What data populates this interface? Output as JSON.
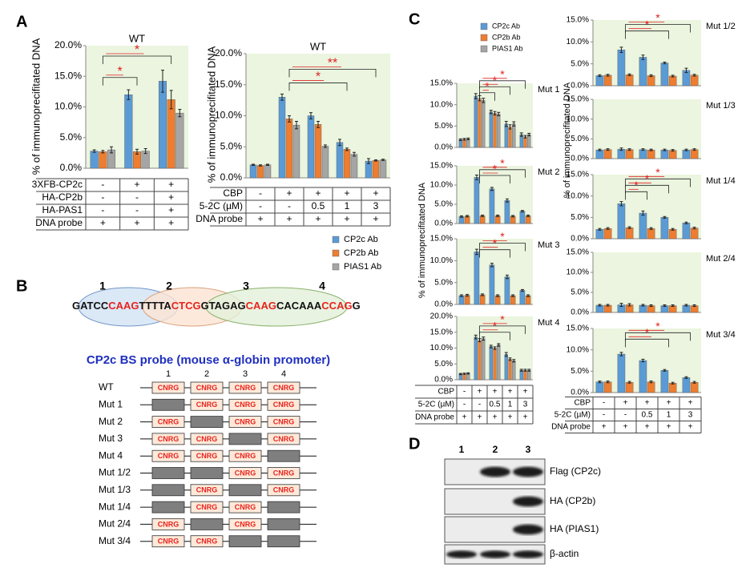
{
  "panels": [
    "A",
    "B",
    "C",
    "D"
  ],
  "chart_data": [
    {
      "type": "bar",
      "title": "WT",
      "ylabel": "% of immunoprecifitated DNA",
      "ylim": [
        0,
        20
      ],
      "yticks": [
        {
          "value": 0,
          "label": "0.0%"
        },
        {
          "value": 5,
          "label": "5.0%"
        },
        {
          "value": 10,
          "label": "10.0%"
        },
        {
          "value": 15,
          "label": "15.0%"
        },
        {
          "value": 20,
          "label": "20.0%"
        }
      ],
      "background": "#ebf5df",
      "series": [
        {
          "color": "#5b9bd5",
          "values": [
            2.8,
            12.0,
            14.2
          ],
          "errors": [
            0.2,
            0.8,
            1.8
          ]
        },
        {
          "color": "#ed7d31",
          "values": [
            2.7,
            2.7,
            11.2
          ],
          "errors": [
            0.2,
            0.4,
            1.5
          ]
        },
        {
          "color": "#a5a5a5",
          "values": [
            3.0,
            2.8,
            9.0
          ],
          "errors": [
            0.5,
            0.4,
            0.6
          ]
        }
      ],
      "conditions": [
        {
          "label": "3XFB-CP2c",
          "values": [
            "-",
            "+",
            "+"
          ]
        },
        {
          "label": "HA-CP2b",
          "values": [
            "-",
            "-",
            "+"
          ]
        },
        {
          "label": "HA-PAS1",
          "values": [
            "-",
            "-",
            "+"
          ]
        },
        {
          "label": "DNA probe",
          "values": [
            "+",
            "+",
            "+"
          ]
        }
      ],
      "annotations": [
        "*",
        "*"
      ]
    },
    {
      "type": "bar",
      "title": "WT",
      "ylabel": "% of immunoprecifitated DNA",
      "ylim": [
        0,
        20
      ],
      "yticks": [
        {
          "value": 0,
          "label": "0.0%"
        },
        {
          "value": 5,
          "label": "5.0%"
        },
        {
          "value": 10,
          "label": "10.0%"
        },
        {
          "value": 15,
          "label": "15.0%"
        },
        {
          "value": 20,
          "label": "20.0%"
        }
      ],
      "background": "#ebf5df",
      "series": [
        {
          "name": "CP2c Ab",
          "color": "#5b9bd5",
          "values": [
            2.1,
            13.0,
            10.0,
            5.7,
            2.7
          ],
          "errors": [
            0.1,
            0.5,
            0.5,
            0.5,
            0.4
          ]
        },
        {
          "name": "CP2b Ab",
          "color": "#ed7d31",
          "values": [
            2.0,
            9.5,
            8.6,
            4.6,
            2.8
          ],
          "errors": [
            0.1,
            0.5,
            0.5,
            0.2,
            0.1
          ]
        },
        {
          "name": "PIAS1 Ab",
          "color": "#a5a5a5",
          "values": [
            2.1,
            8.5,
            5.1,
            3.8,
            2.9
          ],
          "errors": [
            0.1,
            0.6,
            0.2,
            0.3,
            0.1
          ]
        }
      ],
      "conditions": [
        {
          "label": "CBP",
          "values": [
            "-",
            "+",
            "+",
            "+",
            "+"
          ]
        },
        {
          "label": "5-2C (µM)",
          "values": [
            "-",
            "-",
            "0.5",
            "1",
            "3"
          ]
        },
        {
          "label": "DNA probe",
          "values": [
            "+",
            "+",
            "+",
            "+",
            "+"
          ]
        }
      ],
      "annotations": [
        "**",
        "*"
      ]
    },
    {
      "type": "bar",
      "title": "Mut 1",
      "ylim": [
        0,
        15
      ],
      "yticks": [
        {
          "value": 0,
          "label": "0.0%"
        },
        {
          "value": 5,
          "label": "5.0%"
        },
        {
          "value": 10,
          "label": "10.0%"
        },
        {
          "value": 15,
          "label": "15.0%"
        }
      ],
      "background": "#ebf5df",
      "series": [
        {
          "name": "CP2c Ab",
          "color": "#5b9bd5",
          "values": [
            1.8,
            12.0,
            8.3,
            5.5,
            3.0
          ],
          "errors": [
            0.2,
            0.6,
            0.4,
            0.6,
            0.4
          ]
        },
        {
          "name": "CP2b Ab",
          "color": "#ed7d31",
          "values": [
            1.9,
            11.5,
            8.0,
            4.8,
            2.5
          ],
          "errors": [
            0.2,
            0.6,
            0.4,
            0.5,
            0.3
          ]
        },
        {
          "name": "PIAS1 Ab",
          "color": "#a5a5a5",
          "values": [
            2.0,
            11.0,
            7.8,
            5.5,
            3.0
          ],
          "errors": [
            0.2,
            0.5,
            0.4,
            0.5,
            0.3
          ]
        }
      ],
      "annotations": [
        "*",
        "*",
        "*"
      ]
    },
    {
      "type": "bar",
      "title": "Mut 2",
      "ylim": [
        0,
        15
      ],
      "yticks": [
        {
          "value": 0,
          "label": "0.0%"
        },
        {
          "value": 5,
          "label": "5.0%"
        },
        {
          "value": 10,
          "label": "10.0%"
        },
        {
          "value": 15,
          "label": "15.0%"
        }
      ],
      "background": "#ebf5df",
      "series": [
        {
          "color": "#5b9bd5",
          "values": [
            1.8,
            12.0,
            9.0,
            6.0,
            3.2
          ],
          "errors": [
            0.2,
            0.6,
            0.4,
            0.4,
            0.2
          ]
        },
        {
          "color": "#ed7d31",
          "values": [
            1.9,
            2.0,
            2.0,
            1.9,
            2.0
          ],
          "errors": [
            0.2,
            0.2,
            0.2,
            0.2,
            0.2
          ]
        }
      ],
      "annotations": [
        "*",
        "*"
      ]
    },
    {
      "type": "bar",
      "title": "Mut 3",
      "ylabel": "% of immunoprecifitated DNA",
      "ylim": [
        0,
        15
      ],
      "yticks": [
        {
          "value": 0,
          "label": "0.0%"
        },
        {
          "value": 5,
          "label": "5.0%"
        },
        {
          "value": 10,
          "label": "10.0%"
        },
        {
          "value": 15,
          "label": "15.0%"
        }
      ],
      "background": "#ebf5df",
      "series": [
        {
          "color": "#5b9bd5",
          "values": [
            2.0,
            12.0,
            9.0,
            6.3,
            3.2
          ],
          "errors": [
            0.2,
            0.6,
            0.4,
            0.4,
            0.2
          ]
        },
        {
          "color": "#ed7d31",
          "values": [
            2.1,
            2.2,
            2.0,
            2.0,
            2.0
          ],
          "errors": [
            0.2,
            0.2,
            0.2,
            0.2,
            0.2
          ]
        }
      ],
      "annotations": [
        "*",
        "*"
      ]
    },
    {
      "type": "bar",
      "title": "Mut 4",
      "ylim": [
        0,
        20
      ],
      "yticks": [
        {
          "value": 0,
          "label": "0.0%"
        },
        {
          "value": 5,
          "label": "5.0%"
        },
        {
          "value": 10,
          "label": "10.0%"
        },
        {
          "value": 15,
          "label": "15.0%"
        },
        {
          "value": 20,
          "label": "20.0%"
        }
      ],
      "background": "#ebf5df",
      "series": [
        {
          "color": "#5b9bd5",
          "values": [
            1.8,
            13.5,
            10.5,
            8.0,
            3.0
          ],
          "errors": [
            0.2,
            0.6,
            0.4,
            0.6,
            0.3
          ]
        },
        {
          "color": "#ed7d31",
          "values": [
            1.9,
            12.5,
            10.0,
            6.5,
            3.0
          ],
          "errors": [
            0.2,
            0.5,
            0.4,
            0.4,
            0.3
          ]
        },
        {
          "color": "#a5a5a5",
          "values": [
            2.0,
            13.0,
            11.0,
            6.0,
            3.0
          ],
          "errors": [
            0.2,
            0.5,
            0.4,
            0.4,
            0.3
          ]
        }
      ],
      "conditions": [
        {
          "label": "CBP",
          "values": [
            "-",
            "+",
            "+",
            "+",
            "+"
          ]
        },
        {
          "label": "5-2C (µM)",
          "values": [
            "-",
            "-",
            "0.5",
            "1",
            "3"
          ]
        },
        {
          "label": "DNA probe",
          "values": [
            "+",
            "+",
            "+",
            "+",
            "+"
          ]
        }
      ],
      "annotations": [
        "*",
        "*"
      ]
    },
    {
      "type": "bar",
      "title": "Mut 1/2",
      "ylim": [
        0,
        15
      ],
      "yticks": [
        {
          "value": 0,
          "label": "0.0%"
        },
        {
          "value": 5,
          "label": "5.0%"
        },
        {
          "value": 10,
          "label": "10.0%"
        },
        {
          "value": 15,
          "label": "15.0%"
        }
      ],
      "background": "#ebf5df",
      "series": [
        {
          "color": "#5b9bd5",
          "values": [
            2.3,
            8.2,
            6.5,
            5.2,
            3.5
          ],
          "errors": [
            0.2,
            0.6,
            0.5,
            0.2,
            0.5
          ]
        },
        {
          "color": "#ed7d31",
          "values": [
            2.4,
            2.5,
            2.3,
            2.2,
            2.4
          ],
          "errors": [
            0.2,
            0.2,
            0.2,
            0.2,
            0.2
          ]
        }
      ],
      "annotations": [
        "*",
        "*"
      ]
    },
    {
      "type": "bar",
      "title": "Mut 1/3",
      "ylabel": "% of immunoprecifitated DNA",
      "ylim": [
        0,
        15
      ],
      "yticks": [
        {
          "value": 0,
          "label": "0.0%"
        },
        {
          "value": 5,
          "label": "5.0%"
        },
        {
          "value": 10,
          "label": "10.0%"
        },
        {
          "value": 15,
          "label": "15.0%"
        }
      ],
      "background": "#ebf5df",
      "series": [
        {
          "color": "#5b9bd5",
          "values": [
            2.2,
            2.4,
            2.3,
            2.2,
            2.2
          ],
          "errors": [
            0.2,
            0.3,
            0.2,
            0.2,
            0.2
          ]
        },
        {
          "color": "#ed7d31",
          "values": [
            2.3,
            2.3,
            2.2,
            2.1,
            2.3
          ],
          "errors": [
            0.2,
            0.2,
            0.2,
            0.2,
            0.2
          ]
        }
      ]
    },
    {
      "type": "bar",
      "title": "Mut 1/4",
      "ylim": [
        0,
        15
      ],
      "yticks": [
        {
          "value": 0,
          "label": "0.0%"
        },
        {
          "value": 5,
          "label": "5.0%"
        },
        {
          "value": 10,
          "label": "10.0%"
        },
        {
          "value": 15,
          "label": "15.0%"
        }
      ],
      "background": "#ebf5df",
      "series": [
        {
          "color": "#5b9bd5",
          "values": [
            2.2,
            8.2,
            6.0,
            5.0,
            3.7
          ],
          "errors": [
            0.2,
            0.5,
            0.5,
            0.2,
            0.2
          ]
        },
        {
          "color": "#ed7d31",
          "values": [
            2.4,
            2.6,
            2.4,
            2.2,
            2.5
          ],
          "errors": [
            0.2,
            0.2,
            0.2,
            0.2,
            0.2
          ]
        }
      ],
      "annotations": [
        "*",
        "*",
        "*"
      ]
    },
    {
      "type": "bar",
      "title": "Mut 2/4",
      "ylim": [
        0,
        15
      ],
      "yticks": [
        {
          "value": 0,
          "label": "0.0%"
        },
        {
          "value": 5,
          "label": "5.0%"
        },
        {
          "value": 10,
          "label": "10.0%"
        },
        {
          "value": 15,
          "label": "15.0%"
        }
      ],
      "background": "#ebf5df",
      "series": [
        {
          "color": "#5b9bd5",
          "values": [
            1.8,
            1.9,
            1.8,
            1.7,
            1.8
          ],
          "errors": [
            0.2,
            0.4,
            0.2,
            0.2,
            0.2
          ]
        },
        {
          "color": "#ed7d31",
          "values": [
            1.8,
            1.9,
            1.7,
            1.7,
            1.7
          ],
          "errors": [
            0.2,
            0.3,
            0.2,
            0.2,
            0.2
          ]
        }
      ]
    },
    {
      "type": "bar",
      "title": "Mut 3/4",
      "ylim": [
        0,
        15
      ],
      "yticks": [
        {
          "value": 0,
          "label": "0.0%"
        },
        {
          "value": 5,
          "label": "5.0%"
        },
        {
          "value": 10,
          "label": "10.0%"
        },
        {
          "value": 15,
          "label": "15.0%"
        }
      ],
      "background": "#ebf5df",
      "series": [
        {
          "color": "#5b9bd5",
          "values": [
            2.5,
            9.0,
            7.5,
            5.2,
            3.5
          ],
          "errors": [
            0.2,
            0.4,
            0.3,
            0.2,
            0.2
          ]
        },
        {
          "color": "#ed7d31",
          "values": [
            2.5,
            2.4,
            2.5,
            2.2,
            2.4
          ],
          "errors": [
            0.2,
            0.2,
            0.2,
            0.2,
            0.2
          ]
        }
      ],
      "conditions": [
        {
          "label": "CBP",
          "values": [
            "-",
            "+",
            "+",
            "+",
            "+"
          ]
        },
        {
          "label": "5-2C (µM)",
          "values": [
            "-",
            "-",
            "0.5",
            "1",
            "3"
          ]
        },
        {
          "label": "DNA probe",
          "values": [
            "+",
            "+",
            "+",
            "+",
            "+"
          ]
        }
      ],
      "annotations": [
        "*",
        "*"
      ]
    }
  ],
  "diagram": {
    "numbers": [
      "1",
      "2",
      "3",
      "4"
    ],
    "sequence": [
      {
        "text": "GATCC",
        "site": false
      },
      {
        "text": "CAAG",
        "site": true
      },
      {
        "text": "TTTTA",
        "site": false
      },
      {
        "text": "CTCG",
        "site": true
      },
      {
        "text": "GTAGAG",
        "site": false
      },
      {
        "text": "CAAG",
        "site": true
      },
      {
        "text": "CACAAA",
        "site": false
      },
      {
        "text": "CCAG",
        "site": true
      },
      {
        "text": "G",
        "site": false
      }
    ],
    "title": "CP2c BS probe (mouse α-globin promoter)",
    "site_label": "CNRG",
    "constructs": [
      {
        "name": "WT",
        "sites": [
          true,
          true,
          true,
          true
        ]
      },
      {
        "name": "Mut 1",
        "sites": [
          false,
          true,
          true,
          true
        ]
      },
      {
        "name": "Mut 2",
        "sites": [
          true,
          false,
          true,
          true
        ]
      },
      {
        "name": "Mut 3",
        "sites": [
          true,
          true,
          false,
          true
        ]
      },
      {
        "name": "Mut 4",
        "sites": [
          true,
          true,
          true,
          false
        ]
      },
      {
        "name": "Mut 1/2",
        "sites": [
          false,
          false,
          true,
          true
        ]
      },
      {
        "name": "Mut 1/3",
        "sites": [
          false,
          true,
          false,
          true
        ]
      },
      {
        "name": "Mut 1/4",
        "sites": [
          false,
          true,
          true,
          false
        ]
      },
      {
        "name": "Mut 2/4",
        "sites": [
          true,
          false,
          true,
          false
        ]
      },
      {
        "name": "Mut 3/4",
        "sites": [
          true,
          true,
          false,
          false
        ]
      }
    ]
  },
  "blot": {
    "lanes": [
      "1",
      "2",
      "3"
    ],
    "rows": [
      {
        "label": "Flag (CP2c)",
        "bands": [
          false,
          true,
          true
        ]
      },
      {
        "label": "HA (CP2b)",
        "bands": [
          false,
          false,
          true
        ]
      },
      {
        "label": "HA (PIAS1)",
        "bands": [
          false,
          false,
          true
        ]
      },
      {
        "label": "β-actin",
        "bands": [
          true,
          true,
          true
        ]
      }
    ]
  }
}
